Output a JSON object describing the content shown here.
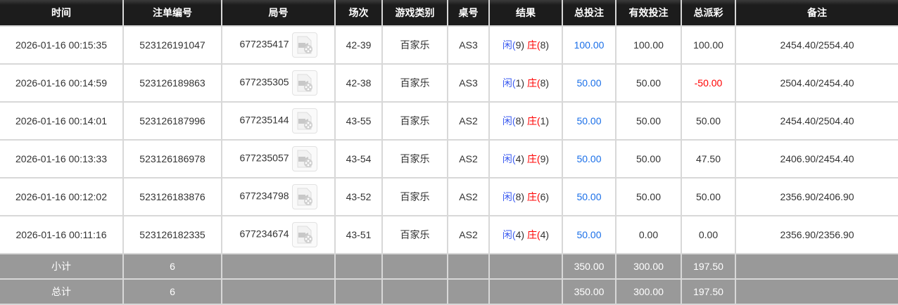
{
  "headers": [
    "时间",
    "注单编号",
    "局号",
    "场次",
    "游戏类别",
    "桌号",
    "结果",
    "总投注",
    "有效投注",
    "总派彩",
    "备注"
  ],
  "rows": [
    {
      "time": "2026-01-16 00:15:35",
      "order": "523126191047",
      "round": "677235417",
      "session": "42-39",
      "game": "百家乐",
      "table": "AS3",
      "player": "闲(9)",
      "banker": "庄(8)",
      "bet": "100.00",
      "valid": "100.00",
      "payout": "100.00",
      "payout_negative": false,
      "note": "2454.40/2554.40"
    },
    {
      "time": "2026-01-16 00:14:59",
      "order": "523126189863",
      "round": "677235305",
      "session": "42-38",
      "game": "百家乐",
      "table": "AS3",
      "player": "闲(1)",
      "banker": "庄(8)",
      "bet": "50.00",
      "valid": "50.00",
      "payout": "-50.00",
      "payout_negative": true,
      "note": "2504.40/2454.40"
    },
    {
      "time": "2026-01-16 00:14:01",
      "order": "523126187996",
      "round": "677235144",
      "session": "43-55",
      "game": "百家乐",
      "table": "AS2",
      "player": "闲(8)",
      "banker": "庄(1)",
      "bet": "50.00",
      "valid": "50.00",
      "payout": "50.00",
      "payout_negative": false,
      "note": "2454.40/2504.40"
    },
    {
      "time": "2026-01-16 00:13:33",
      "order": "523126186978",
      "round": "677235057",
      "session": "43-54",
      "game": "百家乐",
      "table": "AS2",
      "player": "闲(4)",
      "banker": "庄(9)",
      "bet": "50.00",
      "valid": "50.00",
      "payout": "47.50",
      "payout_negative": false,
      "note": "2406.90/2454.40"
    },
    {
      "time": "2026-01-16 00:12:02",
      "order": "523126183876",
      "round": "677234798",
      "session": "43-52",
      "game": "百家乐",
      "table": "AS2",
      "player": "闲(8)",
      "banker": "庄(6)",
      "bet": "50.00",
      "valid": "50.00",
      "payout": "50.00",
      "payout_negative": false,
      "note": "2356.90/2406.90"
    },
    {
      "time": "2026-01-16 00:11:16",
      "order": "523126182335",
      "round": "677234674",
      "session": "43-51",
      "game": "百家乐",
      "table": "AS2",
      "player": "闲(4)",
      "banker": "庄(4)",
      "bet": "50.00",
      "valid": "0.00",
      "payout": "0.00",
      "payout_negative": false,
      "note": "2356.90/2356.90"
    }
  ],
  "footer": [
    {
      "label": "小计",
      "count": "6",
      "bet": "350.00",
      "valid": "300.00",
      "payout": "197.50"
    },
    {
      "label": "总计",
      "count": "6",
      "bet": "350.00",
      "valid": "300.00",
      "payout": "197.50"
    }
  ],
  "icons": {
    "video": "video-replay-icon"
  },
  "colors": {
    "header_bg": "#1c1c1c",
    "footer_bg": "#999999",
    "bet_blue": "#1a6fe8",
    "negative_red": "#ff0000"
  }
}
